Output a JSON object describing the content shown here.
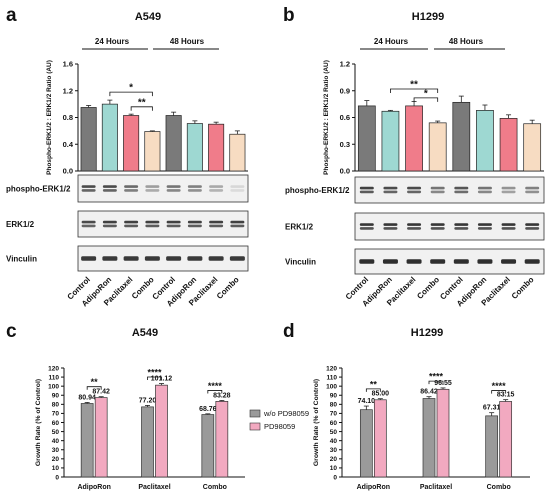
{
  "panels": {
    "a": {
      "letter": "a",
      "title": "A549"
    },
    "b": {
      "letter": "b",
      "title": "H1299"
    },
    "c": {
      "letter": "c",
      "title": "A549"
    },
    "d": {
      "letter": "d",
      "title": "H1299"
    }
  },
  "western": {
    "groups": [
      "24 Hours",
      "48 Hours"
    ],
    "blot_labels": [
      "phospho-ERK1/2",
      "ERK1/2",
      "Vinculin"
    ],
    "lane_labels": [
      "Control",
      "AdipoRon",
      "Paclitaxel",
      "Combo",
      "Control",
      "AdipoRon",
      "Paclitaxel",
      "Combo"
    ]
  },
  "chart_data": [
    {
      "panel": "a",
      "type": "bar",
      "title": "A549",
      "ylabel": "Phospho-ERK1/2 : ERK1/2 Ratio (AU)",
      "ylim": [
        0,
        1.6
      ],
      "yticks": [
        "0.0",
        "0.4",
        "0.8",
        "1.2",
        "1.6"
      ],
      "categories": [
        "Control",
        "AdipoRon",
        "Paclitaxel",
        "Combo",
        "Control",
        "AdipoRon",
        "Paclitaxel",
        "Combo"
      ],
      "values": [
        0.95,
        1.0,
        0.83,
        0.59,
        0.83,
        0.71,
        0.7,
        0.55
      ],
      "errors": [
        0.03,
        0.06,
        0.02,
        0.01,
        0.05,
        0.04,
        0.03,
        0.05
      ],
      "colors": [
        "#7a7a7a",
        "#9ed8d2",
        "#f07c8a",
        "#f7dcc2",
        "#7a7a7a",
        "#9ed8d2",
        "#f07c8a",
        "#f7dcc2"
      ],
      "significance": [
        "*",
        "**"
      ]
    },
    {
      "panel": "b",
      "type": "bar",
      "title": "H1299",
      "ylabel": "Phospho-ERK1/2 : ERK1/2 Ratio (AU)",
      "ylim": [
        0,
        1.2
      ],
      "yticks": [
        "0.0",
        "0.3",
        "0.6",
        "0.9",
        "1.2"
      ],
      "categories": [
        "Control",
        "AdipoRon",
        "Paclitaxel",
        "Combo",
        "Control",
        "AdipoRon",
        "Paclitaxel",
        "Combo"
      ],
      "values": [
        0.73,
        0.67,
        0.73,
        0.54,
        0.77,
        0.68,
        0.59,
        0.53
      ],
      "errors": [
        0.06,
        0.01,
        0.05,
        0.02,
        0.07,
        0.06,
        0.04,
        0.04
      ],
      "colors": [
        "#7a7a7a",
        "#9ed8d2",
        "#f07c8a",
        "#f7dcc2",
        "#7a7a7a",
        "#9ed8d2",
        "#f07c8a",
        "#f7dcc2"
      ],
      "significance": [
        "**",
        "*"
      ]
    },
    {
      "panel": "c",
      "type": "bar",
      "title": "A549",
      "ylabel": "Growth Rate (% of Control)",
      "ylim": [
        0,
        120
      ],
      "yticks": [
        "0",
        "10",
        "20",
        "30",
        "40",
        "50",
        "60",
        "70",
        "80",
        "90",
        "100",
        "110",
        "120"
      ],
      "categories": [
        "AdipoRon",
        "Paclitaxel",
        "Combo"
      ],
      "legend": [
        "w/o PD98059",
        "PD98059"
      ],
      "series": [
        {
          "name": "w/o PD98059",
          "color": "#9a9a9a",
          "values": [
            80.94,
            77.2,
            68.76
          ],
          "labels": [
            "80.94",
            "77.20",
            "68.76"
          ],
          "errors": [
            1.2,
            1.6,
            0.8
          ]
        },
        {
          "name": "PD98059",
          "color": "#f2a9c0",
          "values": [
            87.42,
            101.12,
            83.28
          ],
          "labels": [
            "87.42",
            "101.12",
            "83.28"
          ],
          "errors": [
            1.0,
            1.8,
            1.0
          ]
        }
      ],
      "significance": [
        "**",
        "****",
        "****"
      ]
    },
    {
      "panel": "d",
      "type": "bar",
      "title": "H1299",
      "ylabel": "Growth Rate (% of Control)",
      "ylim": [
        0,
        120
      ],
      "yticks": [
        "0",
        "10",
        "20",
        "30",
        "40",
        "50",
        "60",
        "70",
        "80",
        "90",
        "100",
        "110",
        "120"
      ],
      "categories": [
        "AdipoRon",
        "Paclitaxel",
        "Combo"
      ],
      "series": [
        {
          "name": "w/o PD98059",
          "color": "#9a9a9a",
          "values": [
            74.1,
            86.42,
            67.31
          ],
          "labels": [
            "74.10",
            "86.42",
            "67.31"
          ],
          "errors": [
            4.0,
            2.0,
            3.5
          ]
        },
        {
          "name": "PD98059",
          "color": "#f2a9c0",
          "values": [
            85.0,
            96.55,
            83.15
          ],
          "labels": [
            "85.00",
            "96.55",
            "83.15"
          ],
          "errors": [
            1.2,
            1.5,
            2.0
          ]
        }
      ],
      "significance": [
        "**",
        "****",
        "****"
      ]
    }
  ]
}
